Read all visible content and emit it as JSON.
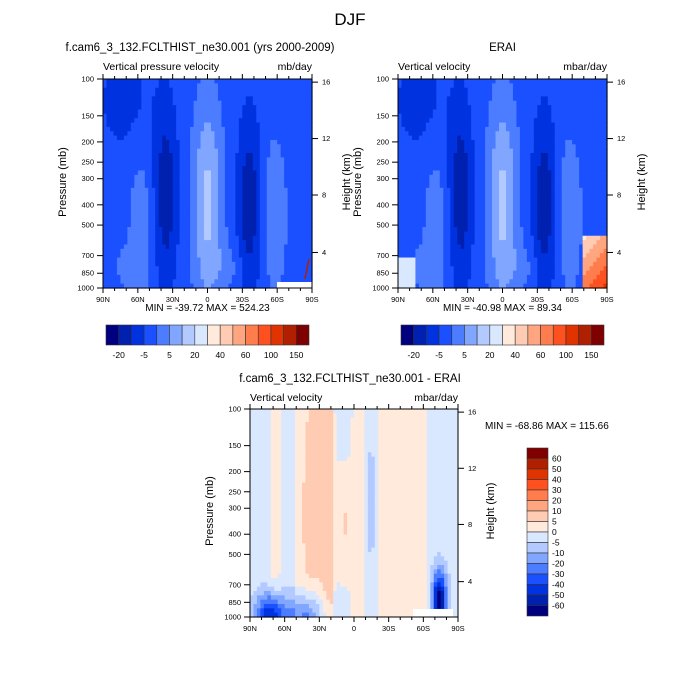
{
  "figure_title": "DJF",
  "chart_data": [
    {
      "type": "heatmap",
      "title": "f.cam6_3_132.FCLTHIST_ne30.001 (yrs 2000-2009)",
      "left_label": "Vertical pressure velocity",
      "right_label": "mb/day",
      "xlabel": "",
      "ylabel": "Pressure (mb)",
      "y2label": "Height (km)",
      "x_ticks": [
        "90N",
        "60N",
        "30N",
        "0",
        "30S",
        "60S",
        "90S"
      ],
      "y_ticks": [
        "100",
        "150",
        "200",
        "250",
        "300",
        "400",
        "500",
        "700",
        "850",
        "1000"
      ],
      "y2_ticks": [
        "16",
        "12",
        "8",
        "4"
      ],
      "ylim": [
        1000,
        100
      ],
      "stats": "MIN = -39.72  MAX = 524.23",
      "colorbar_labels": [
        "-20",
        "-5",
        "5",
        "20",
        "40",
        "60",
        "100",
        "150"
      ],
      "colorbar_orientation": "horizontal"
    },
    {
      "type": "heatmap",
      "title": "ERAI",
      "left_label": "Vertical velocity",
      "right_label": "mbar/day",
      "xlabel": "",
      "ylabel": "Pressure (mb)",
      "y2label": "Height (km)",
      "x_ticks": [
        "90N",
        "60N",
        "30N",
        "0",
        "30S",
        "60S",
        "90S"
      ],
      "y_ticks": [
        "100",
        "150",
        "200",
        "250",
        "300",
        "400",
        "500",
        "700",
        "850",
        "1000"
      ],
      "y2_ticks": [
        "16",
        "12",
        "8",
        "4"
      ],
      "ylim": [
        1000,
        100
      ],
      "stats": "MIN = -40.98  MAX =  89.34",
      "colorbar_labels": [
        "-20",
        "-5",
        "5",
        "20",
        "40",
        "60",
        "100",
        "150"
      ],
      "colorbar_orientation": "horizontal"
    },
    {
      "type": "heatmap",
      "title": "f.cam6_3_132.FCLTHIST_ne30.001 - ERAI",
      "left_label": "Vertical velocity",
      "right_label": "mbar/day",
      "xlabel": "",
      "ylabel": "Pressure (mb)",
      "y2label": "Height (km)",
      "x_ticks": [
        "90N",
        "60N",
        "30N",
        "0",
        "30S",
        "60S",
        "90S"
      ],
      "y_ticks": [
        "100",
        "150",
        "200",
        "250",
        "300",
        "400",
        "500",
        "700",
        "850",
        "1000"
      ],
      "y2_ticks": [
        "16",
        "12",
        "8",
        "4"
      ],
      "ylim": [
        1000,
        100
      ],
      "stats": "MIN = -68.86  MAX = 115.66",
      "colorbar_labels": [
        "60",
        "50",
        "40",
        "30",
        "20",
        "10",
        "5",
        "0",
        "-5",
        "-10",
        "-20",
        "-30",
        "-40",
        "-50",
        "-60"
      ],
      "colorbar_orientation": "vertical"
    }
  ],
  "colors": {
    "abs_scale": [
      "#00007f",
      "#0020b0",
      "#0032e0",
      "#1a50ff",
      "#4c7cff",
      "#80a6ff",
      "#b2caff",
      "#d9e8ff",
      "#ffeadb",
      "#ffcbb2",
      "#ffa680",
      "#ff7d4c",
      "#ff5020",
      "#e03300",
      "#b02000",
      "#7f0000"
    ],
    "diff_scale_top_to_bottom": [
      "#7f0000",
      "#b02000",
      "#e03300",
      "#ff5020",
      "#ff7d4c",
      "#ffa680",
      "#ffcbb2",
      "#ffeadb",
      "#d9e8ff",
      "#b2caff",
      "#80a6ff",
      "#4c7cff",
      "#1a50ff",
      "#0032e0",
      "#0020b0",
      "#00007f"
    ]
  }
}
